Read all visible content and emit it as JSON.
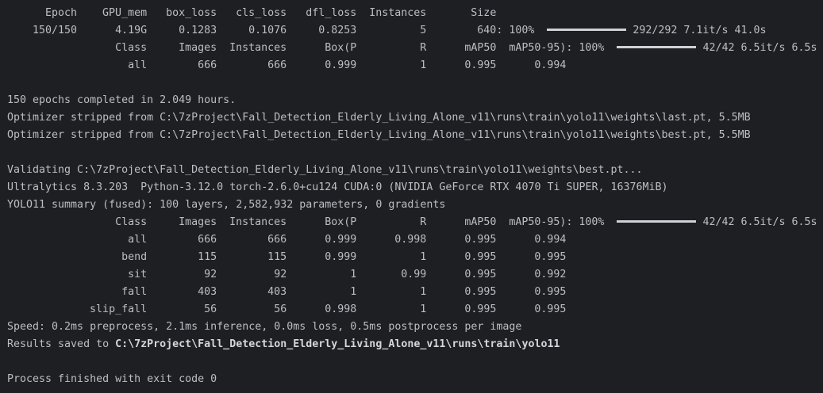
{
  "colors": {
    "background": "#1e1f22",
    "text": "#bcbec4",
    "progress_bar": "#cfd1d6"
  },
  "train_header": [
    "Epoch",
    "GPU_mem",
    "box_loss",
    "cls_loss",
    "dfl_loss",
    "Instances",
    "Size"
  ],
  "train_row": {
    "cells": [
      "150/150",
      "4.19G",
      "0.1283",
      "0.1076",
      "0.8253",
      "5",
      "640"
    ],
    "progress_prefix": ": 100%",
    "progress_percent": 100,
    "progress_suffix": "292/292 7.1it/s 41.0s"
  },
  "val_header_1": {
    "cells": [
      "Class",
      "Images",
      "Instances",
      "Box(P",
      "R",
      "mAP50",
      "mAP50-95)"
    ],
    "progress_prefix": ": 100%",
    "progress_percent": 100,
    "progress_suffix": "42/42 6.5it/s 6.5s"
  },
  "val_rows_1": [
    [
      "all",
      "666",
      "666",
      "0.999",
      "1",
      "0.995",
      "0.994"
    ]
  ],
  "messages_1": [
    "150 epochs completed in 2.049 hours.",
    "Optimizer stripped from C:\\7zProject\\Fall_Detection_Elderly_Living_Alone_v11\\runs\\train\\yolo11\\weights\\last.pt, 5.5MB",
    "Optimizer stripped from C:\\7zProject\\Fall_Detection_Elderly_Living_Alone_v11\\runs\\train\\yolo11\\weights\\best.pt, 5.5MB"
  ],
  "messages_2": [
    "Validating C:\\7zProject\\Fall_Detection_Elderly_Living_Alone_v11\\runs\\train\\yolo11\\weights\\best.pt...",
    "Ultralytics 8.3.203  Python-3.12.0 torch-2.6.0+cu124 CUDA:0 (NVIDIA GeForce RTX 4070 Ti SUPER, 16376MiB)",
    "YOLO11 summary (fused): 100 layers, 2,582,932 parameters, 0 gradients"
  ],
  "val_header_2": {
    "cells": [
      "Class",
      "Images",
      "Instances",
      "Box(P",
      "R",
      "mAP50",
      "mAP50-95)"
    ],
    "progress_prefix": ": 100%",
    "progress_percent": 100,
    "progress_suffix": "42/42 6.5it/s 6.5s"
  },
  "val_rows_2": [
    [
      "all",
      "666",
      "666",
      "0.999",
      "0.998",
      "0.995",
      "0.994"
    ],
    [
      "bend",
      "115",
      "115",
      "0.999",
      "1",
      "0.995",
      "0.995"
    ],
    [
      "sit",
      "92",
      "92",
      "1",
      "0.99",
      "0.995",
      "0.992"
    ],
    [
      "fall",
      "403",
      "403",
      "1",
      "1",
      "0.995",
      "0.995"
    ],
    [
      "slip_fall",
      "56",
      "56",
      "0.998",
      "1",
      "0.995",
      "0.995"
    ]
  ],
  "speed": "Speed: 0.2ms preprocess, 2.1ms inference, 0.0ms loss, 0.5ms postprocess per image",
  "results": {
    "prefix": "Results saved to ",
    "path": "C:\\7zProject\\Fall_Detection_Elderly_Living_Alone_v11\\runs\\train\\yolo11"
  },
  "exit": "Process finished with exit code 0"
}
